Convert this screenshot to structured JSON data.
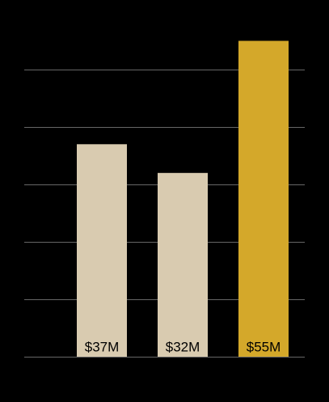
{
  "chart_data": {
    "type": "bar",
    "categories": [
      null,
      null,
      null
    ],
    "values": [
      37,
      32,
      55
    ],
    "value_labels": [
      "$37M",
      "$32M",
      "$55M"
    ],
    "colors": [
      "#d9cbb0",
      "#d9cbb0",
      "#d4a82a"
    ],
    "ylim": [
      0,
      60
    ],
    "yticks": [
      0,
      10,
      20,
      30,
      40,
      50
    ],
    "grid": true
  }
}
